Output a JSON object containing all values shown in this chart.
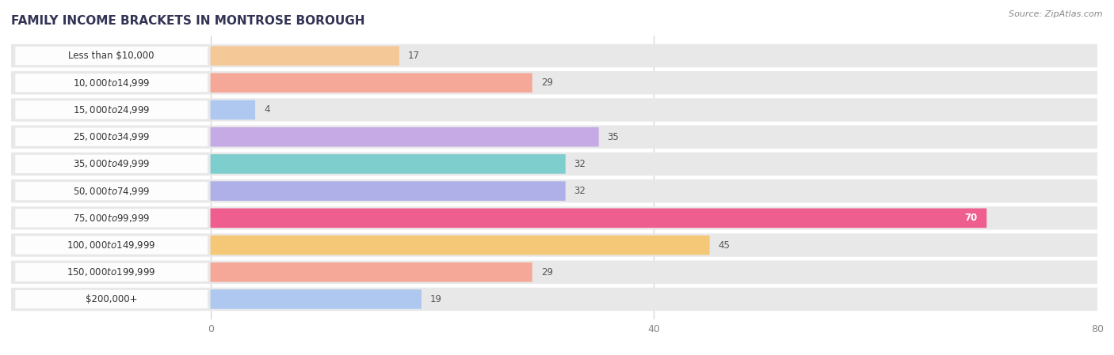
{
  "title": "FAMILY INCOME BRACKETS IN MONTROSE BOROUGH",
  "source": "Source: ZipAtlas.com",
  "categories": [
    "Less than $10,000",
    "$10,000 to $14,999",
    "$15,000 to $24,999",
    "$25,000 to $34,999",
    "$35,000 to $49,999",
    "$50,000 to $74,999",
    "$75,000 to $99,999",
    "$100,000 to $149,999",
    "$150,000 to $199,999",
    "$200,000+"
  ],
  "values": [
    17,
    29,
    4,
    35,
    32,
    32,
    70,
    45,
    29,
    19
  ],
  "bar_colors": [
    "#f5c898",
    "#f5a898",
    "#afc8f0",
    "#c5aae5",
    "#7ecece",
    "#b0b0e8",
    "#ee5f8f",
    "#f5c878",
    "#f5a898",
    "#afc8f0"
  ],
  "xlim": [
    -18,
    80
  ],
  "data_xlim": [
    0,
    80
  ],
  "xticks": [
    0,
    40,
    80
  ],
  "background_color": "#ffffff",
  "row_bg_color": "#e8e8e8",
  "label_bg_color": "#ffffff",
  "title_fontsize": 11,
  "label_fontsize": 8.5,
  "value_fontsize": 8.5,
  "tick_fontsize": 9
}
